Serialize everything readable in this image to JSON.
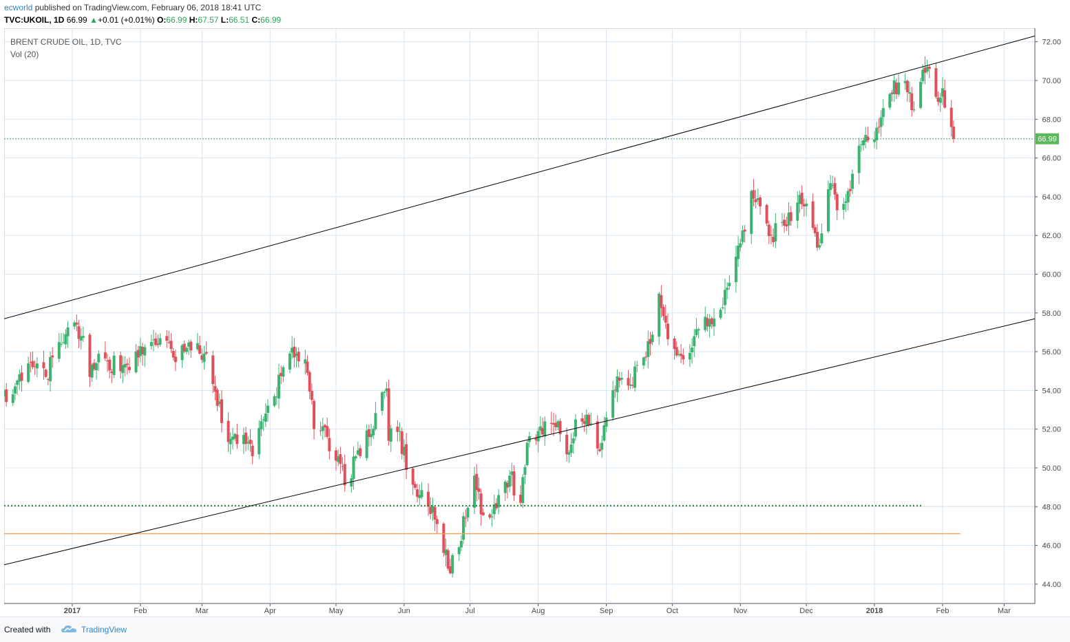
{
  "header": {
    "user": "ecworld",
    "published": "published on TradingView.com, February 06, 2018 18:41 UTC",
    "symbol": "TVC:UKOIL, 1D",
    "last": "66.99",
    "change": "+0.01 (+0.01%)",
    "open_label": "O:",
    "open": "66.99",
    "high_label": "H:",
    "high": "67.57",
    "low_label": "L:",
    "low": "66.51",
    "close_label": "C:",
    "close": "66.99"
  },
  "legend": {
    "instrument": "BRENT CRUDE OIL, 1D, TVC",
    "volume": "Vol (20)"
  },
  "footer": {
    "created": "Created with",
    "brand": "TradingView"
  },
  "colors": {
    "up": "#3cb371",
    "down": "#e0505a",
    "grid": "#d6e4f0",
    "trendline": "#000000",
    "support": "#2e7d32",
    "orange": "#f4a261"
  },
  "chart_data": {
    "type": "candlestick",
    "title": "BRENT CRUDE OIL, 1D, TVC",
    "x_ticks": [
      "2017",
      "Feb",
      "Mar",
      "Apr",
      "May",
      "Jun",
      "Jul",
      "Aug",
      "Sep",
      "Oct",
      "Nov",
      "Dec",
      "2018",
      "Feb",
      "Mar"
    ],
    "y_ticks": [
      "72.00",
      "70.00",
      "68.00",
      "66.00",
      "64.00",
      "62.00",
      "60.00",
      "58.00",
      "56.00",
      "54.00",
      "52.00",
      "50.00",
      "48.00",
      "46.00",
      "44.00"
    ],
    "ylim": [
      43,
      72.7
    ],
    "current_price": "66.99",
    "horizontal_levels": [
      {
        "price": 66.99,
        "style": "dotted-thin",
        "color": "#3aa56b"
      },
      {
        "price": 48.05,
        "style": "dotted-thick",
        "color": "#2e7d32"
      },
      {
        "price": 46.6,
        "style": "solid",
        "color": "#f4a261"
      }
    ],
    "trendlines": [
      {
        "from": [
          "2016-12-01",
          57.7
        ],
        "to": [
          "2018-03-15",
          72.3
        ]
      },
      {
        "from": [
          "2016-12-01",
          45.0
        ],
        "to": [
          "2018-03-15",
          57.7
        ]
      }
    ],
    "anchors": [
      [
        "2016-12-01",
        54.0
      ],
      [
        "2016-12-05",
        53.8
      ],
      [
        "2016-12-09",
        54.5
      ],
      [
        "2016-12-14",
        55.2
      ],
      [
        "2016-12-20",
        54.7
      ],
      [
        "2016-12-27",
        56.4
      ],
      [
        "2017-01-03",
        57.4
      ],
      [
        "2017-01-05",
        56.8
      ],
      [
        "2017-01-09",
        54.7
      ],
      [
        "2017-01-12",
        55.4
      ],
      [
        "2017-01-17",
        55.5
      ],
      [
        "2017-01-24",
        55.3
      ],
      [
        "2017-01-31",
        55.7
      ],
      [
        "2017-02-06",
        56.5
      ],
      [
        "2017-02-10",
        56.7
      ],
      [
        "2017-02-16",
        55.7
      ],
      [
        "2017-02-22",
        56.2
      ],
      [
        "2017-02-28",
        55.9
      ],
      [
        "2017-03-03",
        55.9
      ],
      [
        "2017-03-08",
        53.2
      ],
      [
        "2017-03-14",
        51.5
      ],
      [
        "2017-03-20",
        51.7
      ],
      [
        "2017-03-24",
        50.6
      ],
      [
        "2017-03-29",
        52.5
      ],
      [
        "2017-04-03",
        53.7
      ],
      [
        "2017-04-07",
        55.2
      ],
      [
        "2017-04-11",
        56.2
      ],
      [
        "2017-04-13",
        55.9
      ],
      [
        "2017-04-18",
        54.9
      ],
      [
        "2017-04-21",
        52.0
      ],
      [
        "2017-04-27",
        51.6
      ],
      [
        "2017-05-03",
        50.2
      ],
      [
        "2017-05-05",
        49.1
      ],
      [
        "2017-05-10",
        50.6
      ],
      [
        "2017-05-16",
        51.6
      ],
      [
        "2017-05-22",
        53.9
      ],
      [
        "2017-05-24",
        54.1
      ],
      [
        "2017-05-25",
        51.4
      ],
      [
        "2017-05-30",
        51.9
      ],
      [
        "2017-06-02",
        49.9
      ],
      [
        "2017-06-07",
        48.5
      ],
      [
        "2017-06-12",
        48.0
      ],
      [
        "2017-06-16",
        47.1
      ],
      [
        "2017-06-21",
        44.8
      ],
      [
        "2017-06-26",
        45.9
      ],
      [
        "2017-07-03",
        49.6
      ],
      [
        "2017-07-06",
        47.6
      ],
      [
        "2017-07-11",
        47.5
      ],
      [
        "2017-07-14",
        48.6
      ],
      [
        "2017-07-19",
        49.6
      ],
      [
        "2017-07-24",
        48.2
      ],
      [
        "2017-07-27",
        51.3
      ],
      [
        "2017-08-01",
        51.9
      ],
      [
        "2017-08-04",
        52.4
      ],
      [
        "2017-08-10",
        52.4
      ],
      [
        "2017-08-15",
        50.8
      ],
      [
        "2017-08-18",
        52.5
      ],
      [
        "2017-08-24",
        52.2
      ],
      [
        "2017-08-28",
        51.0
      ],
      [
        "2017-09-01",
        52.6
      ],
      [
        "2017-09-07",
        54.5
      ],
      [
        "2017-09-12",
        54.3
      ],
      [
        "2017-09-18",
        55.7
      ],
      [
        "2017-09-21",
        56.4
      ],
      [
        "2017-09-25",
        59.0
      ],
      [
        "2017-09-28",
        57.5
      ],
      [
        "2017-10-03",
        55.8
      ],
      [
        "2017-10-06",
        55.6
      ],
      [
        "2017-10-11",
        56.8
      ],
      [
        "2017-10-16",
        57.8
      ],
      [
        "2017-10-20",
        57.7
      ],
      [
        "2017-10-26",
        59.3
      ],
      [
        "2017-10-30",
        60.9
      ],
      [
        "2017-11-03",
        62.2
      ],
      [
        "2017-11-06",
        64.3
      ],
      [
        "2017-11-10",
        63.5
      ],
      [
        "2017-11-15",
        62.0
      ],
      [
        "2017-11-21",
        62.5
      ],
      [
        "2017-11-27",
        63.7
      ],
      [
        "2017-11-30",
        63.5
      ],
      [
        "2017-12-04",
        62.4
      ],
      [
        "2017-12-07",
        61.5
      ],
      [
        "2017-12-12",
        64.7
      ],
      [
        "2017-12-15",
        63.3
      ],
      [
        "2017-12-20",
        64.3
      ],
      [
        "2017-12-26",
        66.7
      ],
      [
        "2017-12-29",
        66.9
      ],
      [
        "2018-01-04",
        68.1
      ],
      [
        "2018-01-09",
        69.3
      ],
      [
        "2018-01-12",
        69.9
      ],
      [
        "2018-01-17",
        69.4
      ],
      [
        "2018-01-19",
        68.5
      ],
      [
        "2018-01-24",
        70.4
      ],
      [
        "2018-01-26",
        70.6
      ],
      [
        "2018-01-30",
        68.9
      ],
      [
        "2018-02-01",
        69.6
      ],
      [
        "2018-02-02",
        68.6
      ],
      [
        "2018-02-05",
        67.6
      ],
      [
        "2018-02-06",
        66.99
      ]
    ]
  }
}
